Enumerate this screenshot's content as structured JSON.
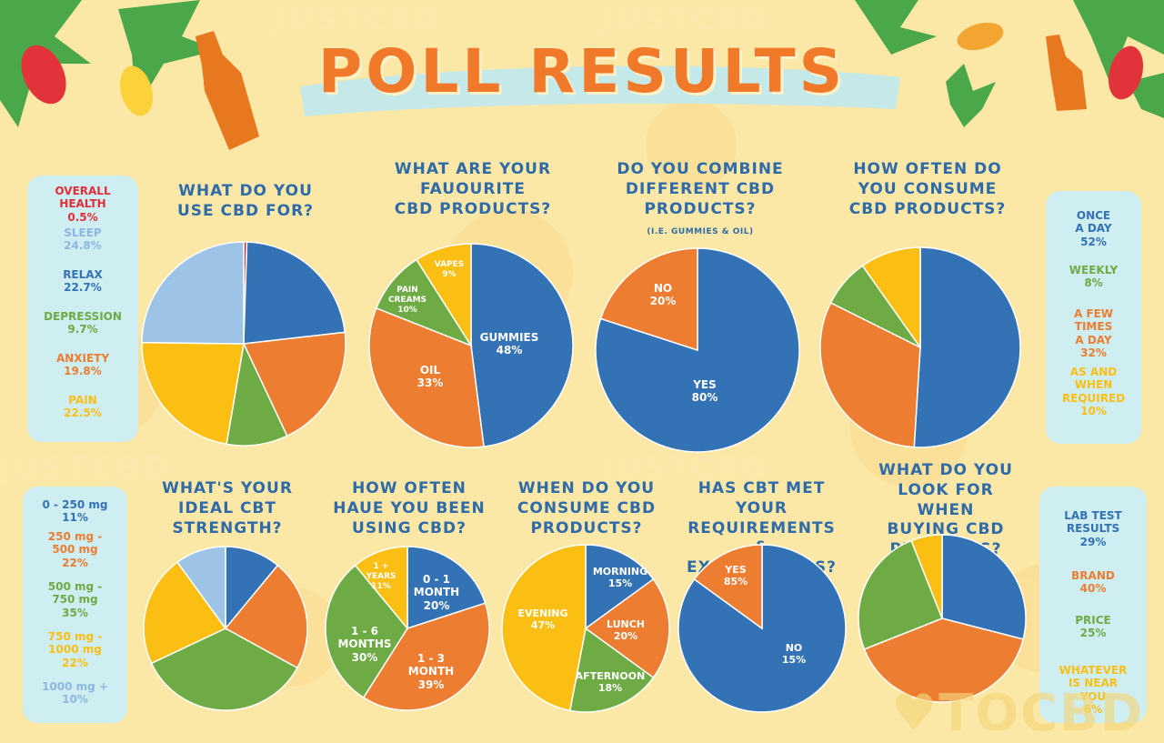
{
  "title": "POLL RESULTS",
  "watermark": "JUSTCBD",
  "logo_text": "TOCBD",
  "colors": {
    "blue": "#3472b6",
    "orange": "#ec7d31",
    "green": "#6eab45",
    "yellow": "#fbbf13",
    "lightblue": "#9dc3e6",
    "red": "#e02f38"
  },
  "chart_data": [
    {
      "type": "pie",
      "title": "WHAT DO YOU\nUSE CBD FOR?",
      "slices": [
        {
          "label": "OVERALL\nHEALTH",
          "value": 0.5,
          "display": "0.5%",
          "color": "#e02f38"
        },
        {
          "label": "RELAX",
          "value": 22.7,
          "display": "22.7%",
          "color": "#3472b6"
        },
        {
          "label": "ANXIETY",
          "value": 19.8,
          "display": "19.8%",
          "color": "#ec7d31"
        },
        {
          "label": "DEPRESSION",
          "value": 9.7,
          "display": "9.7%",
          "color": "#6eab45"
        },
        {
          "label": "PAIN",
          "value": 22.5,
          "display": "22.5%",
          "color": "#fbbf13"
        },
        {
          "label": "SLEEP",
          "value": 24.8,
          "display": "24.8%",
          "color": "#9dc3e6"
        }
      ],
      "legend_order": [
        0,
        5,
        1,
        3,
        2,
        4
      ]
    },
    {
      "type": "pie",
      "title": "WHAT ARE YOUR\nFAUOURITE\nCBD PRODUCTS?",
      "slices": [
        {
          "label": "GUMMIES",
          "value": 48,
          "display": "48%",
          "color": "#3472b6"
        },
        {
          "label": "OIL",
          "value": 33,
          "display": "33%",
          "color": "#ec7d31"
        },
        {
          "label": "PAIN\nCREAMS",
          "value": 10,
          "display": "10%",
          "color": "#6eab45"
        },
        {
          "label": "VAPES",
          "value": 9,
          "display": "9%",
          "color": "#fbbf13"
        }
      ]
    },
    {
      "type": "pie",
      "title": "DO YOU COMBINE\nDIFFERENT CBD\nPRODUCTS?",
      "subtitle": "(I.E. GUMMIES & OIL)",
      "slices": [
        {
          "label": "YES",
          "value": 80,
          "display": "80%",
          "color": "#3472b6"
        },
        {
          "label": "NO",
          "value": 20,
          "display": "20%",
          "color": "#ec7d31"
        }
      ]
    },
    {
      "type": "pie",
      "title": "HOW OFTEN DO\nYOU CONSUME\nCBD PRODUCTS?",
      "slices": [
        {
          "label": "ONCE\nA DAY",
          "value": 52,
          "display": "52%",
          "color": "#3472b6"
        },
        {
          "label": "A FEW\nTIMES\nA DAY",
          "value": 32,
          "display": "32%",
          "color": "#ec7d31"
        },
        {
          "label": "WEEKLY",
          "value": 8,
          "display": "8%",
          "color": "#6eab45"
        },
        {
          "label": "AS AND\nWHEN\nREQUIRED",
          "value": 10,
          "display": "10%",
          "color": "#fbbf13"
        }
      ],
      "legend_order": [
        0,
        2,
        1,
        3
      ]
    },
    {
      "type": "pie",
      "title": "WHAT'S YOUR\nIDEAL CBT\nSTRENGTH?",
      "slices": [
        {
          "label": "0 - 250 mg",
          "value": 11,
          "display": "11%",
          "color": "#3472b6"
        },
        {
          "label": "250 mg -\n500 mg",
          "value": 22,
          "display": "22%",
          "color": "#ec7d31"
        },
        {
          "label": "500 mg -\n750 mg",
          "value": 35,
          "display": "35%",
          "color": "#6eab45"
        },
        {
          "label": "750 mg -\n1000 mg",
          "value": 22,
          "display": "22%",
          "color": "#fbbf13"
        },
        {
          "label": "1000 mg +",
          "value": 10,
          "display": "10%",
          "color": "#9dc3e6"
        }
      ]
    },
    {
      "type": "pie",
      "title": "HOW OFTEN\nHAUE YOU BEEN\nUSING CBD?",
      "slices": [
        {
          "label": "0 - 1\nMONTH",
          "value": 20,
          "display": "20%",
          "color": "#3472b6"
        },
        {
          "label": "1 - 3\nMONTH",
          "value": 39,
          "display": "39%",
          "color": "#ec7d31"
        },
        {
          "label": "1 - 6\nMONTHS",
          "value": 30,
          "display": "30%",
          "color": "#6eab45"
        },
        {
          "label": "1 +\nYEARS",
          "value": 11,
          "display": "11%",
          "color": "#fbbf13"
        }
      ]
    },
    {
      "type": "pie",
      "title": "WHEN DO YOU\nCONSUME CBD\nPRODUCTS?",
      "slices": [
        {
          "label": "MORNING",
          "value": 15,
          "display": "15%",
          "color": "#3472b6"
        },
        {
          "label": "LUNCH",
          "value": 20,
          "display": "20%",
          "color": "#ec7d31"
        },
        {
          "label": "AFTERNOON",
          "value": 18,
          "display": "18%",
          "color": "#6eab45"
        },
        {
          "label": "EVENING",
          "value": 47,
          "display": "47%",
          "color": "#fbbf13"
        }
      ]
    },
    {
      "type": "pie",
      "title": "HAS CBT MET YOUR\nREQUIREMENTS\n& EXPECTATIONS?",
      "slices": [
        {
          "label": "YES",
          "value": 85,
          "display": "85%",
          "color": "#3472b6"
        },
        {
          "label": "NO",
          "value": 15,
          "display": "15%",
          "color": "#ec7d31"
        }
      ]
    },
    {
      "type": "pie",
      "title": "WHAT DO YOU\nLOOK FOR WHEN\nBUYING CBD\nPRODCUTS?",
      "slices": [
        {
          "label": "LAB TEST\nRESULTS",
          "value": 29,
          "display": "29%",
          "color": "#3472b6"
        },
        {
          "label": "BRAND",
          "value": 40,
          "display": "40%",
          "color": "#ec7d31"
        },
        {
          "label": "PRICE",
          "value": 25,
          "display": "25%",
          "color": "#6eab45"
        },
        {
          "label": "WHATEVER\nIS NEAR\nYOU",
          "value": 6,
          "display": "6%",
          "color": "#fbbf13"
        }
      ]
    }
  ]
}
